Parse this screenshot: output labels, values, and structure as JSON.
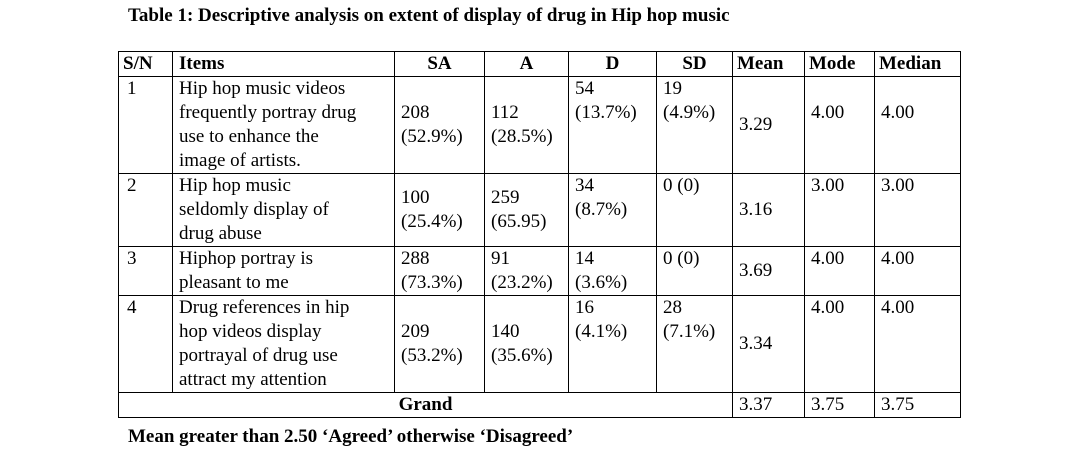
{
  "title": "Table 1: Descriptive analysis on extent of display of drug in Hip hop music",
  "headers": {
    "sn": "S/N",
    "items": "Items",
    "sa": "SA",
    "a": "A",
    "d": "D",
    "sd": "SD",
    "mean": "Mean",
    "mode": "Mode",
    "median": "Median"
  },
  "rows": [
    {
      "sn": "1",
      "item_lines": [
        "Hip hop music videos",
        "frequently portray drug",
        "use to enhance the",
        "image of artists."
      ],
      "sa": [
        "208",
        "(52.9%)"
      ],
      "a": [
        "112",
        "(28.5%)"
      ],
      "d": [
        "54",
        "(13.7%)"
      ],
      "sd": [
        "19",
        "(4.9%)"
      ],
      "mean": "3.29",
      "mode": "4.00",
      "median": "4.00"
    },
    {
      "sn": "2",
      "item_lines": [
        "Hip hop music",
        "seldomly display of",
        "drug abuse"
      ],
      "sa": [
        "100",
        "(25.4%)"
      ],
      "a": [
        "259",
        "(65.95)"
      ],
      "d": [
        "34",
        "(8.7%)"
      ],
      "sd": [
        "0 (0)"
      ],
      "mean": "3.16",
      "mode": "3.00",
      "median": "3.00"
    },
    {
      "sn": "3",
      "item_lines": [
        "Hiphop portray is",
        "pleasant to me"
      ],
      "sa": [
        "288",
        "(73.3%)"
      ],
      "a": [
        "91",
        "(23.2%)"
      ],
      "d": [
        "14",
        "(3.6%)"
      ],
      "sd": [
        "0 (0)"
      ],
      "mean": "3.69",
      "mode": "4.00",
      "median": "4.00"
    },
    {
      "sn": "4",
      "item_lines": [
        "Drug references in hip",
        "hop videos display",
        "portrayal of drug use",
        "attract my attention"
      ],
      "sa": [
        "209",
        "(53.2%)"
      ],
      "a": [
        "140",
        "(35.6%)"
      ],
      "d": [
        "16",
        "(4.1%)"
      ],
      "sd": [
        "28",
        "(7.1%)"
      ],
      "mean": "3.34",
      "mode": "4.00",
      "median": "4.00"
    }
  ],
  "grand": {
    "label": "Grand",
    "mean": "3.37",
    "mode": "3.75",
    "median": "3.75"
  },
  "note": "Mean greater than 2.50 ‘Agreed’ otherwise ‘Disagreed’"
}
